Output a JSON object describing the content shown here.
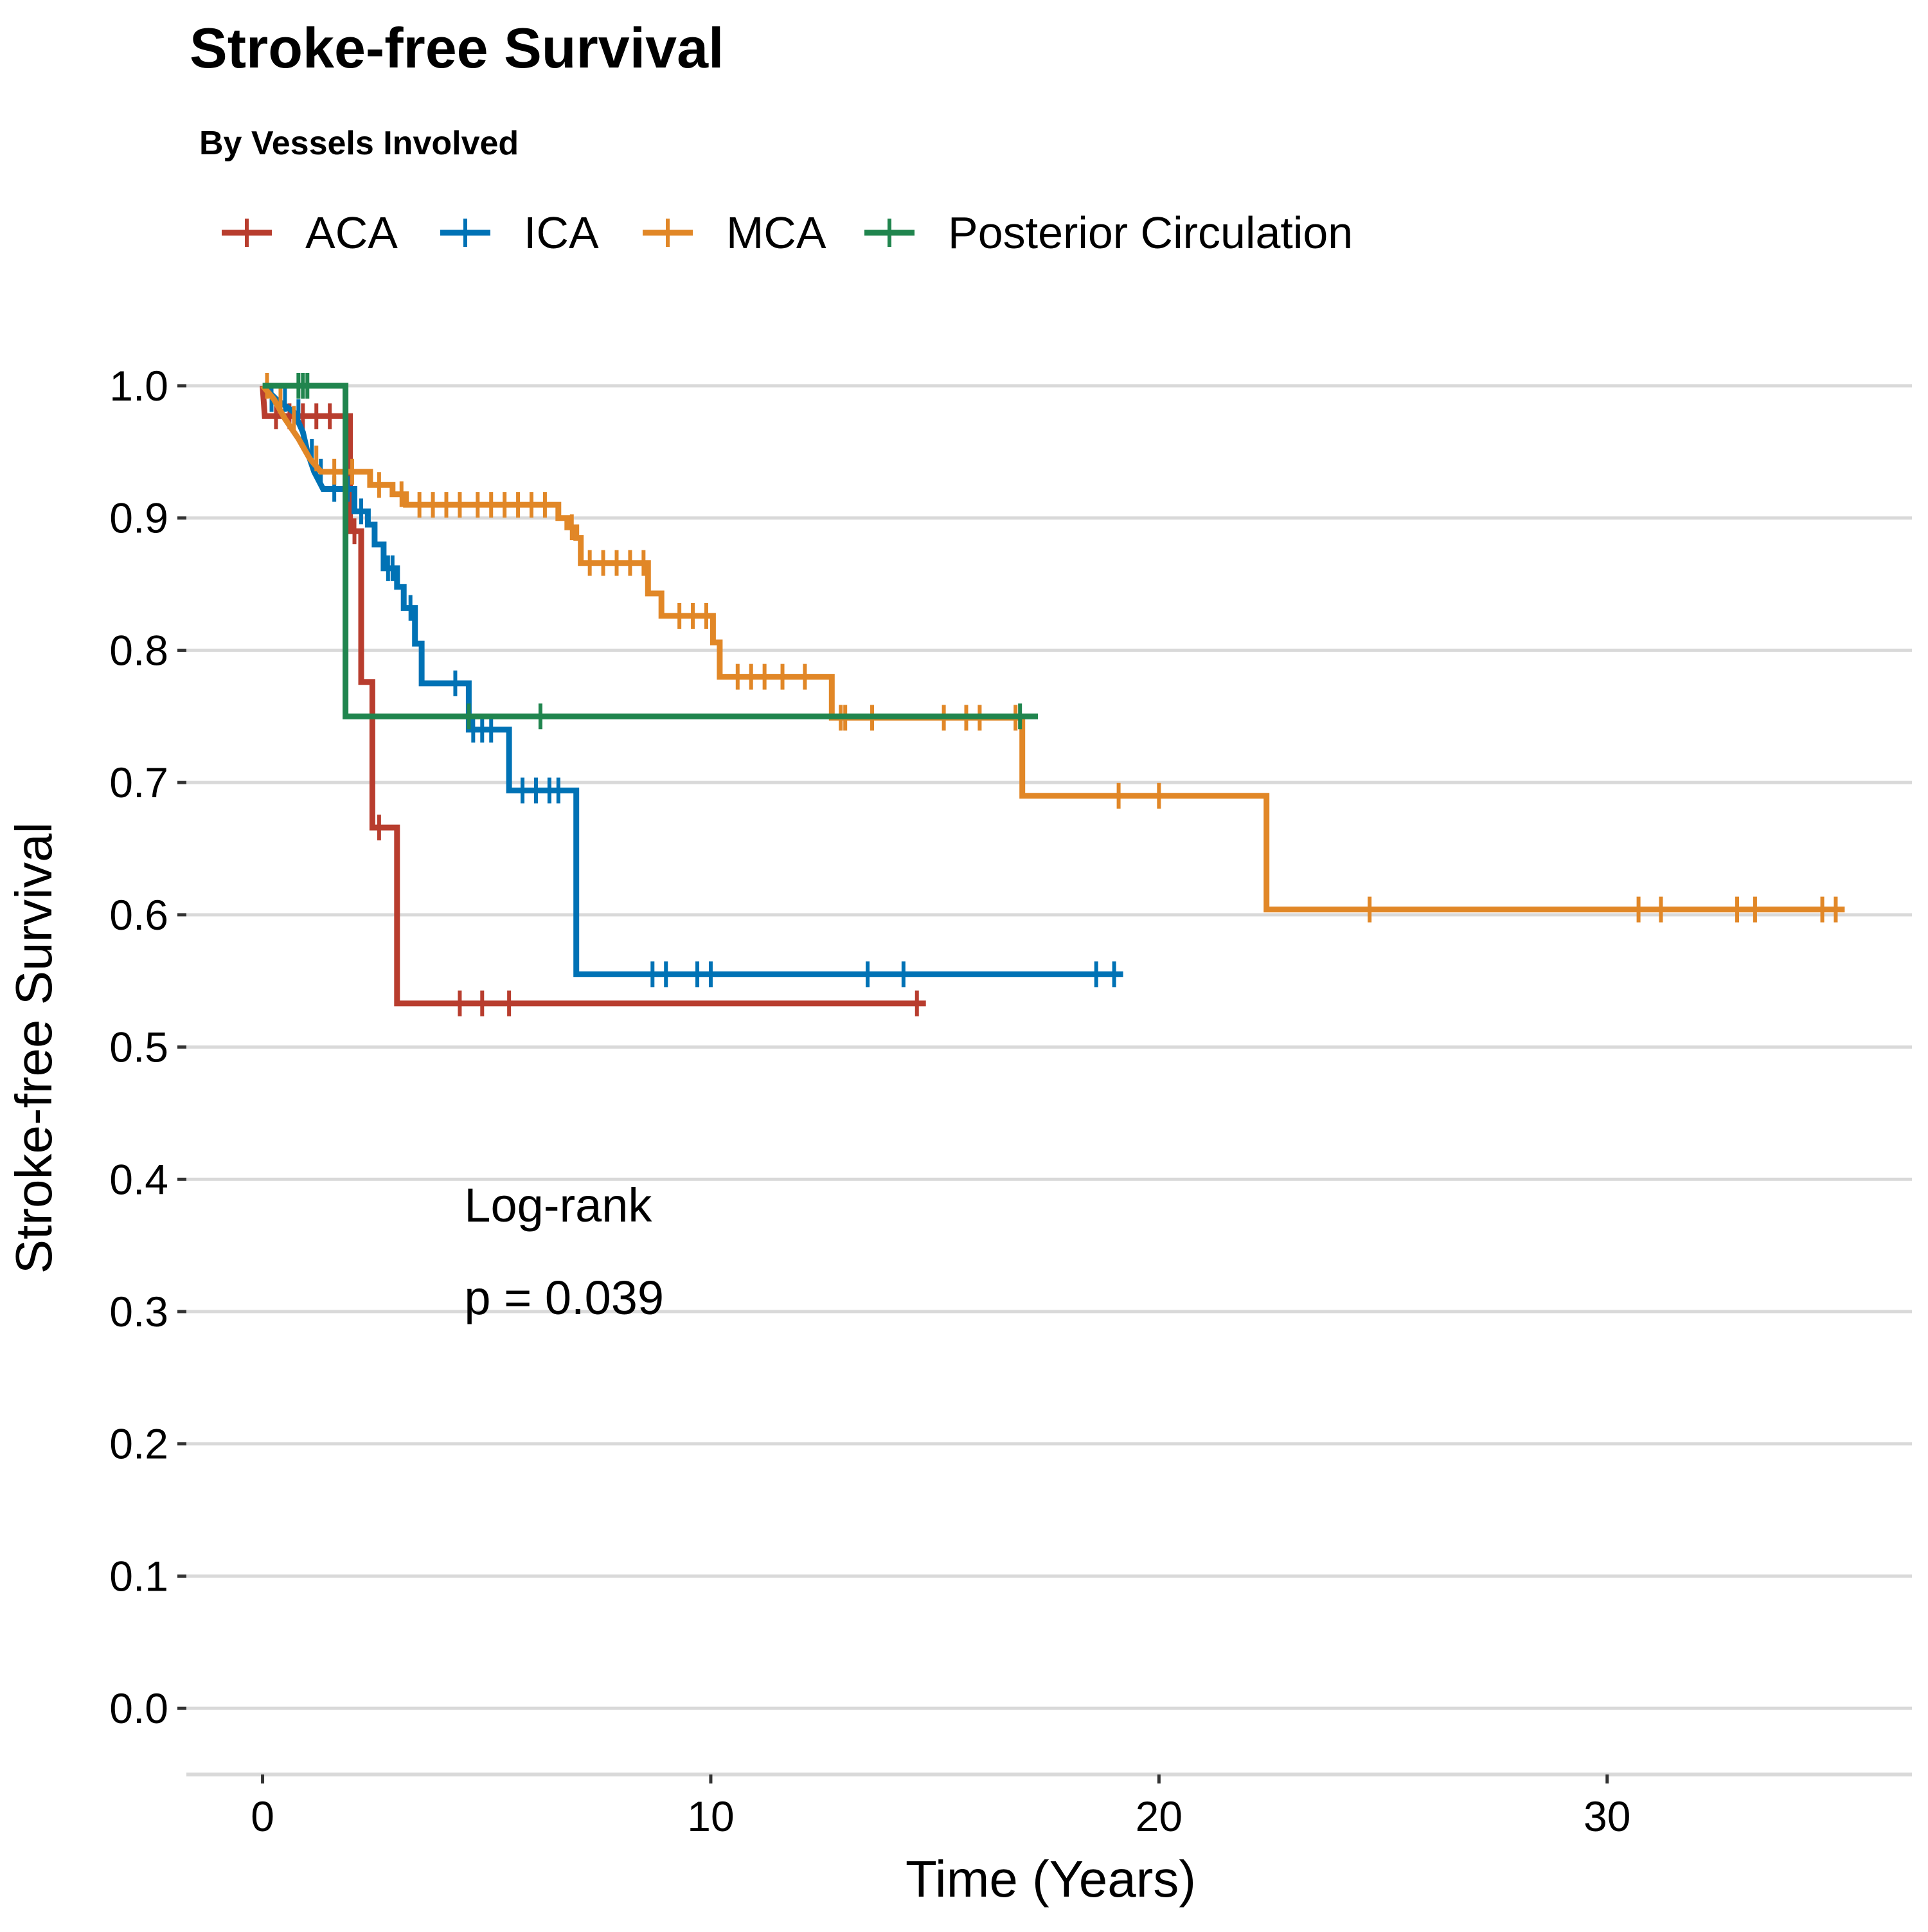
{
  "chart_data": {
    "type": "line",
    "subtype": "kaplan-meier step curve",
    "title": "Stroke-free Survival",
    "subtitle": "By Vessels Involved",
    "xlabel": "Time (Years)",
    "ylabel": "Stroke-free Survival",
    "xlim": [
      -1.7,
      36.8
    ],
    "ylim": [
      -0.05,
      1.0
    ],
    "x_ticks": [
      0,
      10,
      20,
      30
    ],
    "y_ticks": [
      0.0,
      0.1,
      0.2,
      0.3,
      0.4,
      0.5,
      0.6,
      0.7,
      0.8,
      0.9,
      1.0
    ],
    "y_tick_labels": [
      "0.0",
      "0.1",
      "0.2",
      "0.3",
      "0.4",
      "0.5",
      "0.6",
      "0.7",
      "0.8",
      "0.9",
      "1.0"
    ],
    "x_tick_labels": [
      "0",
      "10",
      "20",
      "30"
    ],
    "grid": "horizontal major",
    "legend_position": "top-left",
    "annotation": {
      "line1": "Log-rank",
      "line2": "p = 0.039",
      "x": 4.5,
      "y1": 0.368,
      "y2": 0.298
    },
    "series": [
      {
        "name": "ACA",
        "color": "#B83D2E",
        "steps": [
          [
            0,
            1.0
          ],
          [
            0.05,
            0.977
          ],
          [
            1.95,
            0.977
          ],
          [
            1.95,
            0.89
          ],
          [
            2.2,
            0.89
          ],
          [
            2.2,
            0.776
          ],
          [
            2.45,
            0.776
          ],
          [
            2.45,
            0.666
          ],
          [
            3.0,
            0.666
          ],
          [
            3.0,
            0.533
          ],
          [
            14.8,
            0.533
          ]
        ],
        "censors": [
          [
            0.3,
            0.977
          ],
          [
            0.6,
            0.977
          ],
          [
            0.9,
            0.977
          ],
          [
            1.2,
            0.977
          ],
          [
            1.5,
            0.977
          ],
          [
            2.05,
            0.89
          ],
          [
            2.6,
            0.666
          ],
          [
            4.4,
            0.533
          ],
          [
            4.9,
            0.533
          ],
          [
            5.5,
            0.533
          ],
          [
            14.6,
            0.533
          ]
        ]
      },
      {
        "name": "ICA",
        "color": "#0072B5",
        "steps": [
          [
            0,
            1.0
          ],
          [
            0.3,
            0.99
          ],
          [
            0.7,
            0.98
          ],
          [
            0.9,
            0.965
          ],
          [
            1.0,
            0.95
          ],
          [
            1.15,
            0.935
          ],
          [
            1.35,
            0.922
          ],
          [
            2.05,
            0.922
          ],
          [
            2.05,
            0.905
          ],
          [
            2.35,
            0.905
          ],
          [
            2.35,
            0.895
          ],
          [
            2.5,
            0.895
          ],
          [
            2.5,
            0.88
          ],
          [
            2.7,
            0.88
          ],
          [
            2.7,
            0.862
          ],
          [
            3.0,
            0.862
          ],
          [
            3.0,
            0.848
          ],
          [
            3.15,
            0.848
          ],
          [
            3.15,
            0.832
          ],
          [
            3.4,
            0.832
          ],
          [
            3.4,
            0.805
          ],
          [
            3.55,
            0.805
          ],
          [
            3.55,
            0.775
          ],
          [
            4.6,
            0.775
          ],
          [
            4.6,
            0.74
          ],
          [
            5.5,
            0.74
          ],
          [
            5.5,
            0.694
          ],
          [
            7.0,
            0.694
          ],
          [
            7.0,
            0.555
          ],
          [
            19.2,
            0.555
          ]
        ],
        "censors": [
          [
            0.2,
            0.99
          ],
          [
            0.5,
            0.99
          ],
          [
            0.8,
            0.98
          ],
          [
            1.1,
            0.95
          ],
          [
            1.3,
            0.935
          ],
          [
            1.6,
            0.922
          ],
          [
            1.9,
            0.922
          ],
          [
            2.2,
            0.905
          ],
          [
            2.8,
            0.862
          ],
          [
            2.9,
            0.862
          ],
          [
            3.3,
            0.832
          ],
          [
            4.3,
            0.775
          ],
          [
            4.7,
            0.74
          ],
          [
            4.9,
            0.74
          ],
          [
            5.1,
            0.74
          ],
          [
            5.8,
            0.694
          ],
          [
            6.1,
            0.694
          ],
          [
            6.4,
            0.694
          ],
          [
            6.6,
            0.694
          ],
          [
            8.7,
            0.555
          ],
          [
            9.0,
            0.555
          ],
          [
            9.7,
            0.555
          ],
          [
            10.0,
            0.555
          ],
          [
            13.5,
            0.555
          ],
          [
            14.3,
            0.555
          ],
          [
            18.6,
            0.555
          ],
          [
            19.0,
            0.555
          ]
        ]
      },
      {
        "name": "MCA",
        "color": "#E18727",
        "steps": [
          [
            0,
            1.0
          ],
          [
            0.25,
            0.99
          ],
          [
            0.5,
            0.975
          ],
          [
            0.8,
            0.96
          ],
          [
            1.05,
            0.945
          ],
          [
            1.3,
            0.935
          ],
          [
            2.4,
            0.935
          ],
          [
            2.4,
            0.925
          ],
          [
            2.9,
            0.925
          ],
          [
            2.9,
            0.918
          ],
          [
            3.2,
            0.918
          ],
          [
            3.2,
            0.91
          ],
          [
            6.6,
            0.91
          ],
          [
            6.6,
            0.9
          ],
          [
            6.8,
            0.9
          ],
          [
            6.8,
            0.893
          ],
          [
            7.0,
            0.893
          ],
          [
            7.0,
            0.885
          ],
          [
            7.1,
            0.885
          ],
          [
            7.1,
            0.866
          ],
          [
            8.6,
            0.866
          ],
          [
            8.6,
            0.843
          ],
          [
            8.9,
            0.843
          ],
          [
            8.9,
            0.826
          ],
          [
            10.05,
            0.826
          ],
          [
            10.05,
            0.806
          ],
          [
            10.2,
            0.806
          ],
          [
            10.2,
            0.78
          ],
          [
            12.7,
            0.78
          ],
          [
            12.7,
            0.749
          ],
          [
            16.95,
            0.749
          ],
          [
            16.95,
            0.69
          ],
          [
            22.4,
            0.69
          ],
          [
            22.4,
            0.604
          ],
          [
            35.3,
            0.604
          ]
        ],
        "censors": [
          [
            0.1,
            1.0
          ],
          [
            0.4,
            0.99
          ],
          [
            0.7,
            0.975
          ],
          [
            1.2,
            0.945
          ],
          [
            1.6,
            0.935
          ],
          [
            2.0,
            0.935
          ],
          [
            2.6,
            0.925
          ],
          [
            3.1,
            0.918
          ],
          [
            3.5,
            0.91
          ],
          [
            3.8,
            0.91
          ],
          [
            4.1,
            0.91
          ],
          [
            4.4,
            0.91
          ],
          [
            4.8,
            0.91
          ],
          [
            5.1,
            0.91
          ],
          [
            5.4,
            0.91
          ],
          [
            5.7,
            0.91
          ],
          [
            6.0,
            0.91
          ],
          [
            6.3,
            0.91
          ],
          [
            6.9,
            0.893
          ],
          [
            7.3,
            0.866
          ],
          [
            7.6,
            0.866
          ],
          [
            7.9,
            0.866
          ],
          [
            8.2,
            0.866
          ],
          [
            8.5,
            0.866
          ],
          [
            9.3,
            0.826
          ],
          [
            9.6,
            0.826
          ],
          [
            9.9,
            0.826
          ],
          [
            10.6,
            0.78
          ],
          [
            10.9,
            0.78
          ],
          [
            11.2,
            0.78
          ],
          [
            11.6,
            0.78
          ],
          [
            12.1,
            0.78
          ],
          [
            12.9,
            0.749
          ],
          [
            13.0,
            0.749
          ],
          [
            13.6,
            0.749
          ],
          [
            15.2,
            0.749
          ],
          [
            15.7,
            0.749
          ],
          [
            16.0,
            0.749
          ],
          [
            16.8,
            0.749
          ],
          [
            19.1,
            0.69
          ],
          [
            20.0,
            0.69
          ],
          [
            24.7,
            0.604
          ],
          [
            30.7,
            0.604
          ],
          [
            31.2,
            0.604
          ],
          [
            32.9,
            0.604
          ],
          [
            33.3,
            0.604
          ],
          [
            34.8,
            0.604
          ],
          [
            35.1,
            0.604
          ]
        ]
      },
      {
        "name": "Posterior Circulation",
        "color": "#20854E",
        "steps": [
          [
            0,
            1.0
          ],
          [
            1.85,
            1.0
          ],
          [
            1.85,
            0.75
          ],
          [
            17.3,
            0.75
          ]
        ],
        "censors": [
          [
            0.8,
            1.0
          ],
          [
            0.9,
            1.0
          ],
          [
            1.0,
            1.0
          ],
          [
            4.6,
            0.75
          ],
          [
            6.2,
            0.75
          ],
          [
            16.9,
            0.75
          ]
        ]
      }
    ]
  }
}
